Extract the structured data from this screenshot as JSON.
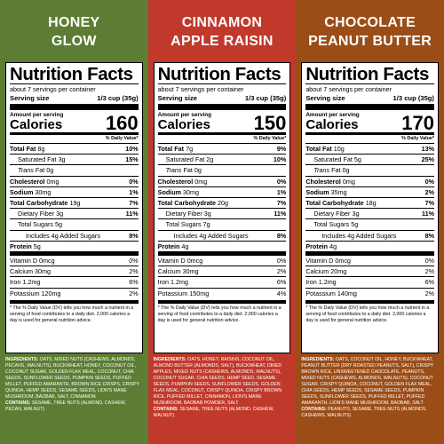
{
  "colors": {
    "honey": "#5c7d33",
    "cinnamon": "#c0392b",
    "chocolate": "#9b4d17"
  },
  "products": [
    {
      "name": "HONEY\nGLOW",
      "color": "#5c7d33",
      "title": "Nutrition Facts",
      "servings": "about 7 servings per container",
      "serving_label": "Serving size",
      "serving_value": "1/3 cup (35g)",
      "amount_label": "Amount per serving",
      "calories_label": "Calories",
      "calories": "160",
      "dv_header": "% Daily Value*",
      "rows": [
        {
          "label": "Total Fat",
          "amount": "8g",
          "pct": "10%",
          "indent": 0,
          "bold": true
        },
        {
          "label": "Saturated Fat",
          "amount": "3g",
          "pct": "15%",
          "indent": 1,
          "bold": false
        },
        {
          "label": "Trans",
          "suffix": " Fat 0g",
          "amount": "",
          "pct": "",
          "indent": 1,
          "bold": false,
          "italic_label": true
        },
        {
          "label": "Cholesterol",
          "amount": "0mg",
          "pct": "0%",
          "indent": 0,
          "bold": true
        },
        {
          "label": "Sodium",
          "amount": "30mg",
          "pct": "1%",
          "indent": 0,
          "bold": true
        },
        {
          "label": "Total Carbohydrate",
          "amount": "19g",
          "pct": "7%",
          "indent": 0,
          "bold": true
        },
        {
          "label": "Dietary Fiber",
          "amount": "3g",
          "pct": "11%",
          "indent": 1,
          "bold": false
        },
        {
          "label": "Total Sugars",
          "amount": "5g",
          "pct": "",
          "indent": 1,
          "bold": false
        },
        {
          "label": "Includes 4g Added Sugars",
          "amount": "",
          "pct": "8%",
          "indent": 2,
          "bold": false
        },
        {
          "label": "Protein",
          "amount": "5g",
          "pct": "",
          "indent": 0,
          "bold": true,
          "thick_after": true
        },
        {
          "label": "Vitamin D",
          "amount": "0mcg",
          "pct": "0%",
          "indent": 0,
          "bold": false
        },
        {
          "label": "Calcium",
          "amount": "30mg",
          "pct": "2%",
          "indent": 0,
          "bold": false
        },
        {
          "label": "Iron",
          "amount": "1.2mg",
          "pct": "6%",
          "indent": 0,
          "bold": false
        },
        {
          "label": "Potassium",
          "amount": "120mg",
          "pct": "2%",
          "indent": 0,
          "bold": false
        }
      ],
      "footnote": "* The % Daily Value (DV) tells you how much a nutrient in a serving of food contributes to a daily diet. 2,000 calories a day is used for general nutrition advice.",
      "ingredients_label": "INGREDIENTS:",
      "ingredients": " OATS, MIXED NUTS (CASHEWS, ALMONDS, PECANS, WALNUTS), BUCKWHEAT, HONEY, COCONUT OIL, COCONUT SUGAR, GOLDEN FLAX MEAL, COCONUT, CHIA SEEDS, SUNFLOWER SEEDS, PUMPKIN SEEDS, PUFFED MILLET, PUFFED AMARANTH, BROWN RICE CRISPS, CRISPY QUINOA, HEMP SEEDS, SESAME SEEDS, LION'S MANE MUSHROOM, BAOBAB, SALT, CINNAMON",
      "contains_label": "CONTAINS:",
      "contains": " SESAME, TREE NUTS (ALMOND, CASHEW, PECAN, WALNUT)"
    },
    {
      "name": "CINNAMON\nAPPLE RAISIN",
      "color": "#c0392b",
      "title": "Nutrition Facts",
      "servings": "about 7 servings per container",
      "serving_label": "Serving size",
      "serving_value": "1/3 cup (35g)",
      "amount_label": "Amount per serving",
      "calories_label": "Calories",
      "calories": "150",
      "dv_header": "% Daily Value*",
      "rows": [
        {
          "label": "Total Fat",
          "amount": "7g",
          "pct": "9%",
          "indent": 0,
          "bold": true
        },
        {
          "label": "Saturated Fat",
          "amount": "2g",
          "pct": "10%",
          "indent": 1,
          "bold": false
        },
        {
          "label": "Trans",
          "suffix": " Fat 0g",
          "amount": "",
          "pct": "",
          "indent": 1,
          "bold": false,
          "italic_label": true
        },
        {
          "label": "Cholesterol",
          "amount": "0mg",
          "pct": "0%",
          "indent": 0,
          "bold": true
        },
        {
          "label": "Sodium",
          "amount": "30mg",
          "pct": "1%",
          "indent": 0,
          "bold": true
        },
        {
          "label": "Total Carbohydrate",
          "amount": "20g",
          "pct": "7%",
          "indent": 0,
          "bold": true
        },
        {
          "label": "Dietary Fiber",
          "amount": "3g",
          "pct": "11%",
          "indent": 1,
          "bold": false
        },
        {
          "label": "Total Sugars",
          "amount": "7g",
          "pct": "",
          "indent": 1,
          "bold": false
        },
        {
          "label": "Includes 4g Added Sugars",
          "amount": "",
          "pct": "8%",
          "indent": 2,
          "bold": false
        },
        {
          "label": "Protein",
          "amount": "4g",
          "pct": "",
          "indent": 0,
          "bold": true,
          "thick_after": true
        },
        {
          "label": "Vitamin D",
          "amount": "0mcg",
          "pct": "0%",
          "indent": 0,
          "bold": false
        },
        {
          "label": "Calcium",
          "amount": "30mg",
          "pct": "2%",
          "indent": 0,
          "bold": false
        },
        {
          "label": "Iron",
          "amount": "1.2mg",
          "pct": "6%",
          "indent": 0,
          "bold": false
        },
        {
          "label": "Potassium",
          "amount": "150mg",
          "pct": "4%",
          "indent": 0,
          "bold": false
        }
      ],
      "footnote": "* The % Daily Value (DV) tells you how much a nutrient in a serving of food contributes to a daily diet. 2,000 calories a day is used for general nutrition advice.",
      "ingredients_label": "INGREDIENTS:",
      "ingredients": " OATS, HONEY, RAISINS, COCONUT OIL, ALMOND BUTTER (ALMONDS, SALT), BUCKWHEAT, DRIED APPLES, MIXED NUTS (CASHEWS, ALMONDS, WALNUTS), COCONUT SUGAR, CHIA SEEDS, HEMP SEED, SESAME SEEDS, PUMPKIN SEEDS, SUNFLOWER SEEDS, GOLDEN FLAX MEAL, COCONUT, CRISPY QUINOA, CRISPY BROWN RICE, PUFFED MILLET, CINNAMON, LION'S MANE MUSHROOM, BAOBAB POWDER, SALT",
      "contains_label": "CONTAINS:",
      "contains": " SESAME, TREE NUTS (ALMOND, CASHEW, WALNUT)"
    },
    {
      "name": "CHOCOLATE\nPEANUT BUTTER",
      "color": "#9b4d17",
      "title": "Nutrition Facts",
      "servings": "about 7 servings per container",
      "serving_label": "Serving size",
      "serving_value": "1/3 cup (35g)",
      "amount_label": "Amount per serving",
      "calories_label": "Calories",
      "calories": "170",
      "dv_header": "% Daily Value*",
      "rows": [
        {
          "label": "Total Fat",
          "amount": "10g",
          "pct": "13%",
          "indent": 0,
          "bold": true
        },
        {
          "label": "Saturated Fat",
          "amount": "5g",
          "pct": "25%",
          "indent": 1,
          "bold": false
        },
        {
          "label": "Trans",
          "suffix": " Fat 0g",
          "amount": "",
          "pct": "",
          "indent": 1,
          "bold": false,
          "italic_label": true
        },
        {
          "label": "Cholesterol",
          "amount": "0mg",
          "pct": "0%",
          "indent": 0,
          "bold": true
        },
        {
          "label": "Sodium",
          "amount": "35mg",
          "pct": "2%",
          "indent": 0,
          "bold": true
        },
        {
          "label": "Total Carbohydrate",
          "amount": "18g",
          "pct": "7%",
          "indent": 0,
          "bold": true
        },
        {
          "label": "Dietary Fiber",
          "amount": "3g",
          "pct": "11%",
          "indent": 1,
          "bold": false
        },
        {
          "label": "Total Sugars",
          "amount": "5g",
          "pct": "",
          "indent": 1,
          "bold": false
        },
        {
          "label": "Includes 4g Added Sugars",
          "amount": "",
          "pct": "8%",
          "indent": 2,
          "bold": false
        },
        {
          "label": "Protein",
          "amount": "4g",
          "pct": "",
          "indent": 0,
          "bold": true,
          "thick_after": true
        },
        {
          "label": "Vitamin D",
          "amount": "0mcg",
          "pct": "0%",
          "indent": 0,
          "bold": false
        },
        {
          "label": "Calcium",
          "amount": "20mg",
          "pct": "2%",
          "indent": 0,
          "bold": false
        },
        {
          "label": "Iron",
          "amount": "1.2mg",
          "pct": "6%",
          "indent": 0,
          "bold": false
        },
        {
          "label": "Potassium",
          "amount": "140mg",
          "pct": "2%",
          "indent": 0,
          "bold": false
        }
      ],
      "footnote": "* The % Daily Value (DV) tells you how much a nutrient in a serving of food contributes to a daily diet. 2,000 calories a day is used for general nutrition advice.",
      "ingredients_label": "INGREDIENTS:",
      "ingredients": " OATS, COCONUT OIL, HONEY, BUCKWHEAT, PEANUT BUTTER (DRY ROASTED PEANUTS, SALT), CRISPY BROWN RICE, UNSWEETENED CHOCOLATE, PEANUTS, MIXED NUTS (CASHEWS, ALMONDS, WALNUTS), COCONUT SUGAR, CRISPY QUINOA, COCONUT, GOLDEN FLAX MEAL, CHIA SEEDS, HEMP SEEDS, SESAME SEEDS, PUMPKIN SEEDS, SUNFLOWER SEEDS, PUFFED MILLET, PUFFED AMARANTH, LION'S MANE MUSHROOM, BAOBAB, SALT",
      "contains_label": "CONTAINS:",
      "contains": " PEANUTS, SESAME, TREE NUTS (ALMONDS, CASHEWS, WALNUTS)"
    }
  ]
}
